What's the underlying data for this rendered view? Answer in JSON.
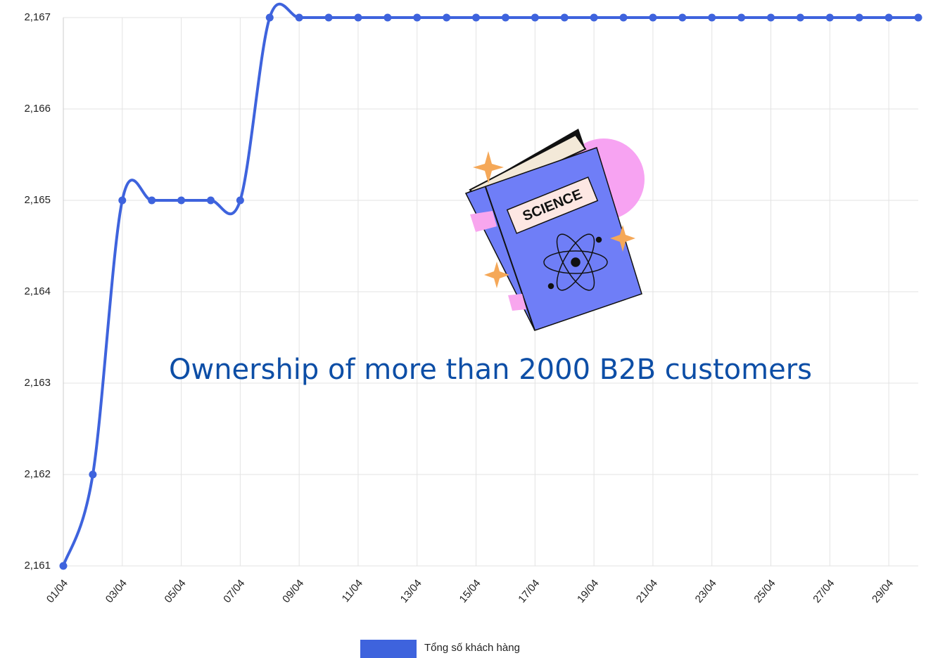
{
  "chart_data": {
    "type": "line",
    "annotation": "Ownership of more than 2000 B2B customers",
    "categories": [
      "01/04",
      null,
      "03/04",
      null,
      "05/04",
      null,
      "07/04",
      null,
      "09/04",
      null,
      "11/04",
      null,
      "13/04",
      null,
      "15/04",
      null,
      "17/04",
      null,
      "19/04",
      null,
      "21/04",
      null,
      "23/04",
      null,
      "25/04",
      null,
      "27/04",
      null,
      "29/04",
      null
    ],
    "series": [
      {
        "name": "Tổng số khách hàng",
        "color": "#3e63dd",
        "values": [
          2161,
          2162,
          2165,
          2165,
          2165,
          2165,
          2165,
          2167,
          2167,
          2167,
          2167,
          2167,
          2167,
          2167,
          2167,
          2167,
          2167,
          2167,
          2167,
          2167,
          2167,
          2167,
          2167,
          2167,
          2167,
          2167,
          2167,
          2167,
          2167,
          2167
        ]
      }
    ],
    "ylim": [
      2161,
      2167
    ],
    "yticks": [
      {
        "value": 2161,
        "label": "2,161"
      },
      {
        "value": 2162,
        "label": "2,162"
      },
      {
        "value": 2163,
        "label": "2,163"
      },
      {
        "value": 2164,
        "label": "2,164"
      },
      {
        "value": 2165,
        "label": "2,165"
      },
      {
        "value": 2166,
        "label": "2,166"
      },
      {
        "value": 2167,
        "label": "2,167"
      }
    ],
    "grid": true,
    "legend": "bottom"
  }
}
